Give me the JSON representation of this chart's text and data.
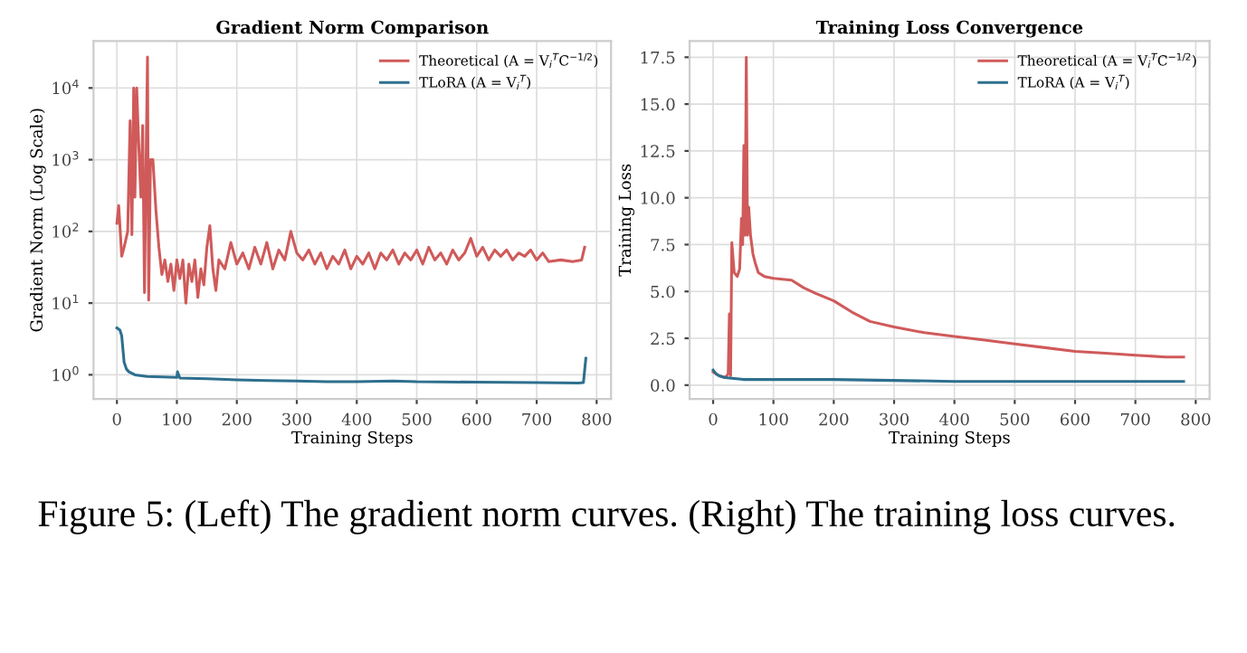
{
  "chart_data": [
    {
      "type": "line",
      "title": "Gradient Norm Comparison",
      "xlabel": "Training Steps",
      "ylabel": "Gradient Norm (Log Scale)",
      "log": "y",
      "grid": true,
      "legend": "top right",
      "xlim": [
        -39,
        824
      ],
      "xticks": [
        0,
        100,
        200,
        300,
        400,
        500,
        600,
        700,
        800
      ],
      "ylim": [
        0.46,
        45000
      ],
      "yticks": [
        {
          "value": 1,
          "label": "10$^{0}$"
        },
        {
          "value": 10,
          "label": "10$^{1}$"
        },
        {
          "value": 100,
          "label": "10$^{2}$"
        },
        {
          "value": 1000,
          "label": "10$^{3}$"
        },
        {
          "value": 10000,
          "label": "10$^{4}$"
        }
      ],
      "series": [
        {
          "name": "Theoretical (A = V$_{i}$$^{T}$C$^{−1/2}$)",
          "color": "#d05a5a",
          "x": [
            0,
            3,
            8,
            12,
            18,
            22,
            25,
            28,
            30,
            33,
            36,
            40,
            43,
            46,
            49,
            51,
            53,
            56,
            60,
            65,
            70,
            75,
            80,
            85,
            90,
            95,
            100,
            105,
            110,
            115,
            120,
            125,
            130,
            135,
            140,
            145,
            150,
            155,
            160,
            165,
            170,
            180,
            190,
            200,
            210,
            220,
            230,
            240,
            250,
            260,
            270,
            280,
            290,
            300,
            310,
            320,
            330,
            340,
            350,
            360,
            370,
            380,
            390,
            400,
            410,
            420,
            430,
            440,
            450,
            460,
            470,
            480,
            490,
            500,
            510,
            520,
            530,
            540,
            550,
            560,
            570,
            580,
            590,
            600,
            610,
            620,
            630,
            640,
            650,
            660,
            670,
            680,
            690,
            700,
            710,
            720,
            740,
            760,
            775,
            780
          ],
          "values": [
            130,
            230,
            45,
            60,
            100,
            3500,
            90,
            10000,
            300,
            10000,
            2000,
            300,
            3000,
            14,
            1500,
            27000,
            11,
            1000,
            1000,
            200,
            60,
            25,
            40,
            20,
            35,
            15,
            40,
            22,
            40,
            10,
            35,
            20,
            40,
            12,
            30,
            18,
            60,
            120,
            30,
            15,
            40,
            30,
            70,
            35,
            50,
            30,
            60,
            35,
            70,
            30,
            55,
            40,
            100,
            50,
            40,
            55,
            35,
            50,
            30,
            45,
            35,
            55,
            30,
            45,
            35,
            50,
            30,
            50,
            40,
            55,
            35,
            50,
            40,
            55,
            35,
            60,
            40,
            50,
            35,
            55,
            40,
            50,
            80,
            45,
            60,
            40,
            55,
            45,
            55,
            40,
            50,
            45,
            55,
            40,
            50,
            38,
            40,
            38,
            40,
            60
          ]
        },
        {
          "name": "TLoRA (A = V$_{i}$$^{T}$)",
          "color": "#2e6f8e",
          "x": [
            0,
            5,
            8,
            12,
            16,
            20,
            30,
            50,
            100,
            101,
            105,
            150,
            200,
            250,
            300,
            350,
            400,
            460,
            500,
            600,
            700,
            770,
            778,
            782
          ],
          "values": [
            4.5,
            4.2,
            3.5,
            1.5,
            1.2,
            1.1,
            1.0,
            0.95,
            0.92,
            1.1,
            0.9,
            0.88,
            0.85,
            0.83,
            0.82,
            0.8,
            0.8,
            0.82,
            0.8,
            0.79,
            0.78,
            0.77,
            0.78,
            1.7
          ]
        }
      ],
      "annotations": [
        "Figure 5: (Left) The gradient norm curves. (Right) The training loss curves."
      ]
    },
    {
      "type": "line",
      "title": "Training Loss Convergence",
      "xlabel": "Training Steps",
      "ylabel": "Training Loss",
      "grid": true,
      "legend": "top right",
      "xlim": [
        -39,
        823
      ],
      "xticks": [
        0,
        100,
        200,
        300,
        400,
        500,
        600,
        700,
        800
      ],
      "ylim": [
        -0.74,
        18.36
      ],
      "yticks": [
        {
          "value": 0,
          "label": "0.0"
        },
        2.5,
        {
          "value": 5,
          "label": "5.0"
        },
        7.5,
        {
          "value": 10,
          "label": "10.0"
        },
        12.5,
        {
          "value": 15,
          "label": "15.0"
        },
        17.5
      ],
      "series": [
        {
          "name": "Theoretical (A = V$_{i}$$^{T}$C$^{−1/2}$)",
          "color": "#d05a5a",
          "x": [
            0,
            10,
            20,
            25,
            27,
            29,
            31,
            35,
            40,
            44,
            47,
            49,
            51,
            53,
            55,
            57,
            59,
            62,
            66,
            70,
            75,
            85,
            100,
            130,
            150,
            170,
            200,
            230,
            260,
            300,
            350,
            400,
            450,
            500,
            550,
            600,
            650,
            700,
            750,
            780
          ],
          "values": [
            0.7,
            0.5,
            0.4,
            0.6,
            3.8,
            0.5,
            7.6,
            6,
            5.8,
            6.2,
            8.9,
            7.5,
            12.8,
            8,
            17.5,
            8,
            9.5,
            8,
            7,
            6.5,
            6,
            5.8,
            5.7,
            5.6,
            5.2,
            4.9,
            4.5,
            3.9,
            3.4,
            3.1,
            2.8,
            2.6,
            2.4,
            2.2,
            2.0,
            1.8,
            1.7,
            1.6,
            1.5,
            1.5
          ]
        },
        {
          "name": "TLoRA (A = V$_{i}$$^{T}$)",
          "color": "#2e6f8e",
          "x": [
            0,
            5,
            10,
            20,
            50,
            100,
            200,
            400,
            600,
            780
          ],
          "values": [
            0.8,
            0.6,
            0.5,
            0.4,
            0.3,
            0.3,
            0.3,
            0.2,
            0.2,
            0.2
          ]
        }
      ]
    }
  ]
}
